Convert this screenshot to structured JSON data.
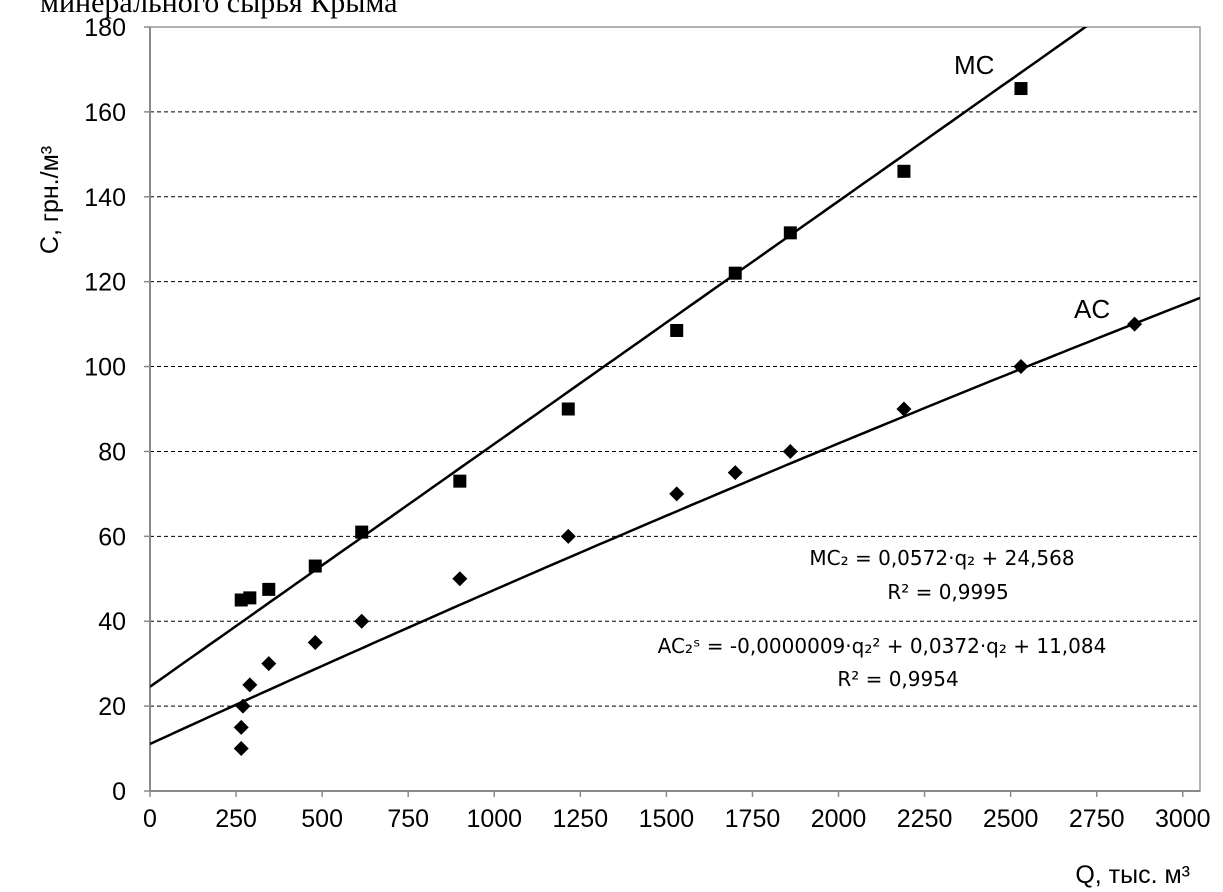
{
  "header": {
    "title": "минерального сырья Крыма"
  },
  "chart_data": {
    "type": "scatter",
    "title": "",
    "xlabel": "Q, тыс. м³",
    "ylabel": "C, грн./м³",
    "xlim": [
      0,
      3050
    ],
    "ylim": [
      0,
      180
    ],
    "x_ticks": [
      0,
      250,
      500,
      750,
      1000,
      1250,
      1500,
      1750,
      2000,
      2250,
      2500,
      2750,
      3000
    ],
    "y_ticks": [
      0,
      20,
      40,
      60,
      80,
      100,
      120,
      140,
      160,
      180
    ],
    "grid": "horizontal dashed",
    "series": [
      {
        "name": "MC",
        "marker": "square",
        "color": "#000000",
        "points": [
          [
            265,
            45
          ],
          [
            290,
            45.5
          ],
          [
            345,
            47.5
          ],
          [
            480,
            53
          ],
          [
            615,
            61
          ],
          [
            900,
            73
          ],
          [
            1215,
            90
          ],
          [
            1530,
            108.5
          ],
          [
            1700,
            122
          ],
          [
            1860,
            131.5
          ],
          [
            2190,
            146
          ],
          [
            2530,
            165.5
          ]
        ],
        "trendline": {
          "type": "linear",
          "intercept": 24.568,
          "slope": 0.0572
        }
      },
      {
        "name": "AC",
        "marker": "diamond",
        "color": "#000000",
        "points": [
          [
            265,
            10
          ],
          [
            265,
            15
          ],
          [
            270,
            20
          ],
          [
            290,
            25
          ],
          [
            345,
            30
          ],
          [
            480,
            35
          ],
          [
            615,
            40
          ],
          [
            900,
            50
          ],
          [
            1215,
            60
          ],
          [
            1530,
            70
          ],
          [
            1700,
            75
          ],
          [
            1860,
            80
          ],
          [
            2190,
            90
          ],
          [
            2530,
            100
          ],
          [
            2860,
            110
          ]
        ],
        "trendline": {
          "type": "quadratic",
          "a": -9e-07,
          "b": 0.0372,
          "c": 11.084
        }
      }
    ],
    "annotations": {
      "mc_label": "MC",
      "ac_label": "AC",
      "mc_equation": "MC₂ = 0,0572·q₂ + 24,568",
      "mc_r2": "R² = 0,9995",
      "ac_equation": "AC₂ˢ = -0,0000009·q₂² + 0,0372·q₂ + 11,084",
      "ac_r2": "R² = 0,9954"
    }
  }
}
